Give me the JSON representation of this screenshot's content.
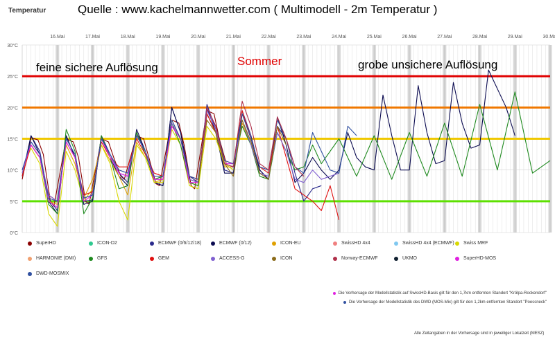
{
  "header": {
    "y_axis_title": "Temperatur",
    "title": "Quelle : www.kachelmannwetter.com ( Multimodell - 2m Temperatur )"
  },
  "annotations": {
    "left": "feine sichere Auflösung",
    "center": "Sommer",
    "right": "grobe unsichere Auflösung"
  },
  "colors": {
    "threshold_25": "#e00000",
    "threshold_20": "#f07800",
    "threshold_15": "#f0c800",
    "threshold_5": "#5de000",
    "annotation_center": "#e00000"
  },
  "legend": {
    "items": [
      {
        "label": "SuperHD",
        "color": "#8b0000"
      },
      {
        "label": "ICON-D2",
        "color": "#2ec98f"
      },
      {
        "label": "ECMWF (0/6/12/18)",
        "color": "#2a2a8c"
      },
      {
        "label": "ECMWF (0/12)",
        "color": "#0a0a50"
      },
      {
        "label": "ICON-EU",
        "color": "#e0a000"
      },
      {
        "label": "SwissHD 4x4",
        "color": "#f08080"
      },
      {
        "label": "SwissHD 4x4 (ECMWF)",
        "color": "#80c8f0"
      },
      {
        "label": "Swiss MRF",
        "color": "#d8d800"
      },
      {
        "label": "HARMONIE (DMI)",
        "color": "#f0a070"
      },
      {
        "label": "GFS",
        "color": "#1f8a1f"
      },
      {
        "label": "GEM",
        "color": "#e01010"
      },
      {
        "label": "ACCESS-G",
        "color": "#8060d0"
      },
      {
        "label": "ICON",
        "color": "#8b6b1a"
      },
      {
        "label": "Norway-ECMWF",
        "color": "#b0304a"
      },
      {
        "label": "UKMO",
        "color": "#102030"
      },
      {
        "label": "SuperHD-MOS",
        "color": "#e020e0"
      },
      {
        "label": "DWD-MOSMIX",
        "color": "#3050a0"
      }
    ],
    "notes": [
      {
        "text": "Die Vorhersage der Modellstatistik auf SwissHD-Basis gilt für den 1,7km entfernten Standort \"Krölpa-Rockendorf\"",
        "color": "#e020e0"
      },
      {
        "text": "Die Vorhersage der Modellstatistik des DWD (MOS-Mix) gilt für den 1,2km entfernten Standort \"Poessneck\"",
        "color": "#3050a0"
      }
    ]
  },
  "footnote": "Alle Zeitangaben in der Vorhersage sind in jeweiliger Lokalzeit (MESZ)",
  "chart_data": {
    "type": "line",
    "title": "Quelle : www.kachelmannwetter.com ( Multimodell - 2m Temperatur )",
    "ylabel": "Temperatur",
    "ylim": [
      0,
      30
    ],
    "y_ticks": [
      "0°C",
      "5°C",
      "10°C",
      "15°C",
      "20°C",
      "25°C",
      "30°C"
    ],
    "y_tick_values": [
      0,
      5,
      10,
      15,
      20,
      25,
      30
    ],
    "x_ticks": [
      "16.Mai",
      "17.Mai",
      "18.Mai",
      "19.Mai",
      "20.Mai",
      "21.Mai",
      "22.Mai",
      "23.Mai",
      "24.Mai",
      "25.Mai",
      "26.Mai",
      "27.Mai",
      "28.Mai",
      "29.Mai",
      "30.Mai"
    ],
    "x_range_days": [
      0,
      15
    ],
    "grid": true,
    "reference_lines": [
      {
        "value": 25,
        "color": "#e00000"
      },
      {
        "value": 20,
        "color": "#f07800"
      },
      {
        "value": 15,
        "color": "#f0c800"
      },
      {
        "value": 5,
        "color": "#5de000"
      }
    ],
    "series": [
      {
        "name": "SuperHD",
        "color": "#8b0000",
        "x": [
          0,
          0.25,
          0.45,
          0.6,
          0.8,
          0.9,
          1.25,
          1.45,
          1.6,
          1.8,
          1.9,
          2.25,
          2.45,
          2.6,
          2.8,
          2.9,
          3.25,
          3.45,
          3.6,
          3.8,
          3.9,
          4.25,
          4.45,
          4.6,
          4.8,
          4.9,
          5.25,
          5.45,
          5.6,
          5.8
        ],
        "y": [
          8.5,
          15.2,
          14.8,
          12.5,
          5,
          4.2,
          15,
          14.5,
          12,
          5,
          4.5,
          15,
          14.5,
          12,
          9,
          8.5,
          15.5,
          15,
          12,
          7.8,
          7.5,
          18,
          17.5,
          14,
          7.5,
          7,
          19.5,
          19,
          15,
          11
        ]
      },
      {
        "name": "ECMWF (0/6/12/18)",
        "color": "#2a2a8c",
        "x": [
          0,
          0.25,
          0.5,
          0.75,
          1.0,
          1.25,
          1.5,
          1.75,
          2.0,
          2.25,
          2.5,
          2.75,
          3.0,
          3.25,
          3.5,
          3.75,
          4.0,
          4.25,
          4.5,
          4.75,
          5.0,
          5.25,
          5.5,
          5.75,
          6.0,
          6.25,
          6.5,
          6.75,
          7.0,
          7.25,
          7.5,
          7.75,
          8.0,
          8.25,
          8.5
        ],
        "y": [
          9,
          15.5,
          13,
          5.5,
          3.5,
          15.5,
          12,
          5,
          5.2,
          15.5,
          12.5,
          9.5,
          8,
          16,
          13,
          8,
          7.5,
          20,
          16,
          9,
          8,
          20.5,
          16.5,
          10,
          9.5,
          19.5,
          15.5,
          10,
          8.5,
          17,
          15,
          9.5,
          5,
          7,
          7.5
        ]
      },
      {
        "name": "ECMWF (0/12)",
        "color": "#0a0a50",
        "x": [
          0,
          0.25,
          0.5,
          0.75,
          1.0,
          1.25,
          1.5,
          1.75,
          2.0,
          2.25,
          2.5,
          2.75,
          3.0,
          3.25,
          3.5,
          3.75,
          4.0,
          4.25,
          4.5,
          4.75,
          5.0,
          5.25,
          5.5,
          5.75,
          6.0,
          6.25,
          6.5,
          6.75,
          7.0,
          7.25,
          7.5,
          7.75,
          8.0,
          8.25,
          8.5,
          8.75,
          9.0,
          9.25,
          9.5,
          9.75,
          10.0,
          10.25,
          10.5,
          10.75,
          11.0,
          11.25,
          11.5,
          11.75,
          12.0,
          12.25,
          12.5,
          12.75,
          13.0,
          13.25,
          13.5,
          13.75,
          14.0
        ],
        "y": [
          9,
          15.5,
          12.5,
          5,
          3,
          15.5,
          12,
          4.5,
          5,
          15.5,
          12,
          9,
          7.5,
          16.5,
          13,
          8,
          7.5,
          20,
          16,
          8.5,
          8,
          20,
          16,
          9.5,
          9.5,
          19,
          15,
          10,
          8.5,
          18.5,
          14,
          8,
          9.5,
          12,
          10,
          8.5,
          10,
          16,
          12,
          10.5,
          10,
          22,
          15.5,
          10,
          10,
          23.5,
          16,
          11,
          11.5,
          24,
          17.5,
          13.5,
          14,
          26,
          23,
          20,
          15.5
        ]
      },
      {
        "name": "ICON-EU",
        "color": "#e0a000",
        "x": [
          0,
          0.25,
          0.5,
          0.75,
          1.0,
          1.25,
          1.5,
          1.75,
          2.0,
          2.25,
          2.5,
          2.75,
          3.0,
          3.25,
          3.5,
          3.75,
          4.0,
          4.25,
          4.5,
          4.75,
          5.0,
          5.25,
          5.5,
          5.75,
          6.0,
          6.25,
          6.5
        ],
        "y": [
          9.5,
          14,
          12,
          5,
          4.5,
          14,
          11,
          5.5,
          8.5,
          14,
          11.5,
          9,
          6,
          14.5,
          12,
          8,
          8.5,
          18,
          15,
          8,
          7.5,
          19,
          16,
          10.5,
          10.5,
          17.5,
          14
        ]
      },
      {
        "name": "Swiss MRF",
        "color": "#d8d800",
        "x": [
          0,
          0.25,
          0.5,
          0.75,
          1.0,
          1.25,
          1.5,
          1.75,
          2.0,
          2.25,
          2.5,
          2.75,
          3.0,
          3.25,
          3.5,
          3.75,
          4.0,
          4.25,
          4.5,
          4.75,
          5.0,
          5.25,
          5.5,
          5.75,
          6.0
        ],
        "y": [
          10,
          13.5,
          11,
          3,
          1,
          13,
          10,
          5,
          7,
          14,
          11,
          5,
          2,
          14,
          12,
          8,
          8,
          16.5,
          14,
          7.5,
          7,
          17,
          15,
          11,
          10
        ]
      },
      {
        "name": "GFS",
        "color": "#1f8a1f",
        "x": [
          0,
          0.25,
          0.5,
          0.75,
          1.0,
          1.25,
          1.5,
          1.75,
          2.0,
          2.25,
          2.5,
          2.75,
          3.0,
          3.25,
          3.5,
          3.75,
          4.0,
          4.25,
          4.5,
          4.75,
          5.0,
          5.25,
          5.5,
          5.75,
          6.0,
          6.25,
          6.5,
          6.75,
          7.0,
          7.25,
          7.5,
          7.75,
          8.0,
          8.25,
          8.5,
          9.0,
          9.5,
          10.0,
          10.5,
          11.0,
          11.5,
          12.0,
          12.5,
          13.0,
          13.5,
          14.0,
          14.5,
          15.0
        ],
        "y": [
          10,
          14,
          12,
          4.5,
          3,
          16.5,
          13,
          3,
          5.5,
          15.5,
          12,
          7,
          7.5,
          16,
          12.5,
          8.5,
          9,
          17.5,
          14,
          8,
          7.5,
          19,
          16,
          11,
          10.5,
          17,
          14,
          9,
          8.5,
          16,
          13,
          10,
          10.5,
          14,
          11,
          15,
          9,
          15.5,
          8.5,
          16,
          9,
          17.5,
          9,
          20.5,
          10,
          22.5,
          9.5,
          11.5
        ]
      },
      {
        "name": "GEM",
        "color": "#e01010",
        "x": [
          0,
          0.25,
          0.5,
          0.75,
          1.0,
          1.25,
          1.5,
          1.75,
          2.0,
          2.25,
          2.5,
          2.75,
          3.0,
          3.25,
          3.5,
          3.75,
          4.0,
          4.25,
          4.5,
          4.75,
          5.0,
          5.25,
          5.5,
          5.75,
          6.0,
          6.25,
          6.5,
          6.75,
          7.0,
          7.25,
          7.5,
          7.75,
          8.0,
          8.25,
          8.5,
          8.75,
          9.0
        ],
        "y": [
          9,
          14,
          12,
          6,
          5,
          14.5,
          12,
          6,
          6.5,
          14.5,
          12,
          10.5,
          10.5,
          15,
          12.5,
          9.5,
          9,
          17,
          15,
          9,
          8.5,
          19,
          16,
          11.5,
          11,
          19.5,
          15,
          10.5,
          9.5,
          17,
          12,
          7,
          6,
          5,
          3.5,
          7.5,
          2
        ]
      },
      {
        "name": "ACCESS-G",
        "color": "#8060d0",
        "x": [
          0,
          0.25,
          0.5,
          0.75,
          1.0,
          1.25,
          1.5,
          1.75,
          2.0,
          2.25,
          2.5,
          2.75,
          3.0,
          3.25,
          3.5,
          3.75,
          4.0,
          4.25,
          4.5,
          4.75,
          5.0,
          5.25,
          5.5,
          5.75,
          6.0,
          6.25,
          6.5,
          6.75,
          7.0,
          7.25,
          7.5,
          7.75,
          8.0,
          8.25,
          8.5,
          8.75,
          9.0
        ],
        "y": [
          9.5,
          14.5,
          12.5,
          6,
          5,
          15,
          12.5,
          5.5,
          6,
          15,
          12.5,
          9.5,
          9,
          15.5,
          13,
          8.5,
          8.5,
          17.5,
          15,
          8.5,
          8,
          19.5,
          16.5,
          11,
          10.5,
          18,
          14,
          9.5,
          9,
          16,
          13,
          8.5,
          8,
          10,
          8.5,
          9,
          9.5
        ]
      },
      {
        "name": "SuperHD-MOS",
        "color": "#e020e0",
        "x": [
          0,
          0.25,
          0.5,
          0.75,
          1.0,
          1.25,
          1.5,
          1.75,
          2.0,
          2.25,
          2.5,
          2.75,
          3.0,
          3.25,
          3.5,
          3.75,
          4.0,
          4.25,
          4.5,
          4.75,
          5.0,
          5.25,
          5.5,
          5.75,
          6.0
        ],
        "y": [
          10,
          14,
          12,
          5,
          4,
          14.5,
          12,
          5,
          6,
          15,
          12,
          9.5,
          9,
          15.5,
          13,
          8.5,
          8.5,
          17,
          15,
          8,
          8,
          20,
          17,
          11,
          11
        ]
      },
      {
        "name": "DWD-MOSMIX",
        "color": "#3050a0",
        "x": [
          0,
          0.25,
          0.5,
          0.75,
          1.0,
          1.25,
          1.5,
          1.75,
          2.0,
          2.25,
          2.5,
          2.75,
          3.0,
          3.25,
          3.5,
          3.75,
          4.0,
          4.25,
          4.5,
          4.75,
          5.0,
          5.25,
          5.5,
          5.75,
          6.0,
          6.25,
          6.5,
          6.75,
          7.0,
          7.25,
          7.5,
          7.75,
          8.0,
          8.25,
          8.5,
          8.75,
          9.0,
          9.25,
          9.5
        ],
        "y": [
          10,
          14.5,
          12.5,
          5.5,
          5,
          15,
          12.5,
          5.5,
          6,
          15,
          12.5,
          10,
          9.5,
          15.5,
          13,
          9,
          9,
          18,
          15,
          9,
          8.5,
          20,
          17,
          11.5,
          11,
          19,
          15,
          10.5,
          10,
          18,
          15,
          10.5,
          9.5,
          16,
          13,
          10,
          9.5,
          17,
          15.5
        ]
      },
      {
        "name": "Norway-ECMWF",
        "color": "#b0304a",
        "x": [
          5.0,
          5.25,
          5.5,
          5.75,
          6.0,
          6.25,
          6.5,
          6.75,
          7.0,
          7.25,
          7.5,
          7.75,
          8.0
        ],
        "y": [
          8,
          20,
          17,
          11,
          10.5,
          21,
          17,
          11,
          10,
          18.5,
          15,
          10.5,
          9
        ]
      },
      {
        "name": "ICON",
        "color": "#8b6b1a",
        "x": [
          5.0,
          5.25,
          5.5,
          5.75,
          6.0,
          6.25,
          6.5,
          6.75,
          7.0,
          7.25,
          7.5
        ],
        "y": [
          8,
          18,
          16,
          11,
          9,
          18,
          14.5,
          9.5,
          8.5,
          17,
          14
        ]
      }
    ]
  }
}
